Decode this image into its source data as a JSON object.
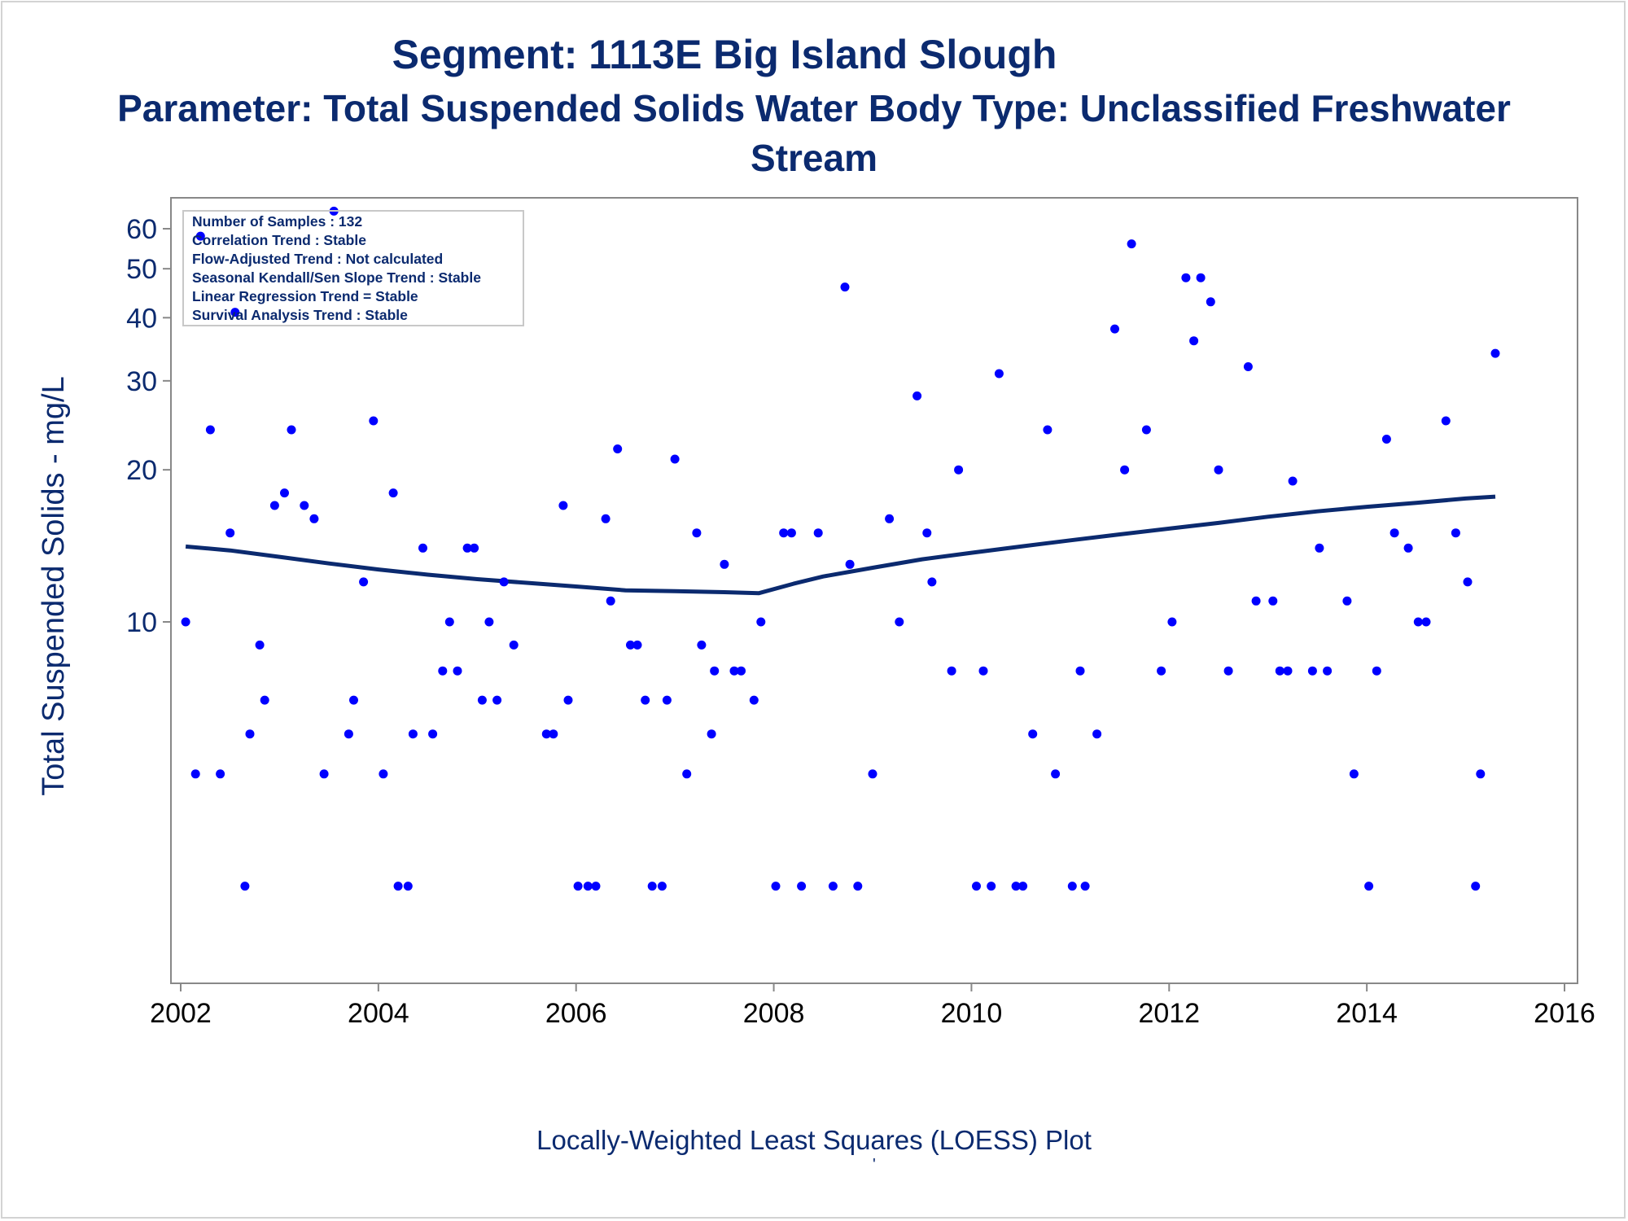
{
  "title": "Segment: 1113E  Big Island Slough",
  "subtitle_line1": "Parameter: Total Suspended Solids   Water Body Type: Unclassified Freshwater",
  "subtitle_line2": "Stream",
  "footnote": "Locally-Weighted Least Squares (LOESS) Plot",
  "footnote_mark": "'",
  "colors": {
    "text": "#0b2a6f",
    "points": "#0000ff",
    "loess": "#0b2a6f",
    "axis": "#888888"
  },
  "stats_box": [
    "Number of Samples : 132",
    "Correlation Trend : Stable",
    "Flow-Adjusted Trend : Not calculated",
    "Seasonal Kendall/Sen Slope Trend : Stable",
    "Linear Regression Trend = Stable",
    "Survival Analysis Trend : Stable"
  ],
  "chart_data": {
    "type": "scatter",
    "ylabel": "Total Suspended Solids - mg/L",
    "yscale": "log",
    "ylim": [
      2.8,
      70
    ],
    "yticks": [
      10,
      20,
      30,
      40,
      50,
      60
    ],
    "xlim": [
      2002,
      2016
    ],
    "xticks": [
      2002,
      2004,
      2006,
      2008,
      2010,
      2012,
      2014,
      2016
    ],
    "legend_position": "top-left",
    "series": [
      {
        "type": "scatter",
        "points": [
          [
            2002.05,
            10
          ],
          [
            2002.15,
            5
          ],
          [
            2002.2,
            58
          ],
          [
            2002.3,
            24
          ],
          [
            2002.4,
            5
          ],
          [
            2002.5,
            15
          ],
          [
            2002.55,
            41
          ],
          [
            2002.65,
            3
          ],
          [
            2002.7,
            6
          ],
          [
            2002.8,
            9
          ],
          [
            2002.85,
            7
          ],
          [
            2002.95,
            17
          ],
          [
            2003.05,
            18
          ],
          [
            2003.12,
            24
          ],
          [
            2003.25,
            17
          ],
          [
            2003.35,
            16
          ],
          [
            2003.45,
            5
          ],
          [
            2003.55,
            65
          ],
          [
            2003.7,
            6
          ],
          [
            2003.75,
            7
          ],
          [
            2003.85,
            12
          ],
          [
            2003.95,
            25
          ],
          [
            2004.05,
            5
          ],
          [
            2004.15,
            18
          ],
          [
            2004.2,
            3
          ],
          [
            2004.3,
            3
          ],
          [
            2004.35,
            6
          ],
          [
            2004.45,
            14
          ],
          [
            2004.55,
            6
          ],
          [
            2004.65,
            8
          ],
          [
            2004.72,
            10
          ],
          [
            2004.8,
            8
          ],
          [
            2004.9,
            14
          ],
          [
            2004.97,
            14
          ],
          [
            2005.05,
            7
          ],
          [
            2005.12,
            10
          ],
          [
            2005.2,
            7
          ],
          [
            2005.27,
            12
          ],
          [
            2005.37,
            9
          ],
          [
            2005.7,
            6
          ],
          [
            2005.77,
            6
          ],
          [
            2005.87,
            17
          ],
          [
            2005.92,
            7
          ],
          [
            2006.02,
            3
          ],
          [
            2006.12,
            3
          ],
          [
            2006.2,
            3
          ],
          [
            2006.3,
            16
          ],
          [
            2006.35,
            11
          ],
          [
            2006.42,
            22
          ],
          [
            2006.55,
            9
          ],
          [
            2006.62,
            9
          ],
          [
            2006.7,
            7
          ],
          [
            2006.77,
            3
          ],
          [
            2006.87,
            3
          ],
          [
            2006.92,
            7
          ],
          [
            2007.0,
            21
          ],
          [
            2007.12,
            5
          ],
          [
            2007.22,
            15
          ],
          [
            2007.27,
            9
          ],
          [
            2007.37,
            6
          ],
          [
            2007.4,
            8
          ],
          [
            2007.5,
            13
          ],
          [
            2007.6,
            8
          ],
          [
            2007.67,
            8
          ],
          [
            2007.8,
            7
          ],
          [
            2007.87,
            10
          ],
          [
            2008.02,
            3
          ],
          [
            2008.1,
            15
          ],
          [
            2008.18,
            15
          ],
          [
            2008.28,
            3
          ],
          [
            2008.45,
            15
          ],
          [
            2008.6,
            3
          ],
          [
            2008.72,
            46
          ],
          [
            2008.77,
            13
          ],
          [
            2008.85,
            3
          ],
          [
            2009.0,
            5
          ],
          [
            2009.17,
            16
          ],
          [
            2009.27,
            10
          ],
          [
            2009.45,
            28
          ],
          [
            2009.55,
            15
          ],
          [
            2009.6,
            12
          ],
          [
            2009.8,
            8
          ],
          [
            2009.87,
            20
          ],
          [
            2010.05,
            3
          ],
          [
            2010.12,
            8
          ],
          [
            2010.2,
            3
          ],
          [
            2010.28,
            31
          ],
          [
            2010.45,
            3
          ],
          [
            2010.52,
            3
          ],
          [
            2010.62,
            6
          ],
          [
            2010.77,
            24
          ],
          [
            2010.85,
            5
          ],
          [
            2011.02,
            3
          ],
          [
            2011.1,
            8
          ],
          [
            2011.15,
            3
          ],
          [
            2011.27,
            6
          ],
          [
            2011.45,
            38
          ],
          [
            2011.55,
            20
          ],
          [
            2011.62,
            56
          ],
          [
            2011.77,
            24
          ],
          [
            2011.92,
            8
          ],
          [
            2012.03,
            10
          ],
          [
            2012.17,
            48
          ],
          [
            2012.25,
            36
          ],
          [
            2012.32,
            48
          ],
          [
            2012.42,
            43
          ],
          [
            2012.5,
            20
          ],
          [
            2012.6,
            8
          ],
          [
            2012.8,
            32
          ],
          [
            2012.88,
            11
          ],
          [
            2013.05,
            11
          ],
          [
            2013.12,
            8
          ],
          [
            2013.2,
            8
          ],
          [
            2013.25,
            19
          ],
          [
            2013.45,
            8
          ],
          [
            2013.52,
            14
          ],
          [
            2013.6,
            8
          ],
          [
            2013.8,
            11
          ],
          [
            2013.87,
            5
          ],
          [
            2014.02,
            3
          ],
          [
            2014.1,
            8
          ],
          [
            2014.2,
            23
          ],
          [
            2014.28,
            15
          ],
          [
            2014.42,
            14
          ],
          [
            2014.52,
            10
          ],
          [
            2014.6,
            10
          ],
          [
            2014.8,
            25
          ],
          [
            2014.9,
            15
          ],
          [
            2015.02,
            12
          ],
          [
            2015.1,
            3
          ],
          [
            2015.15,
            5
          ],
          [
            2015.3,
            34
          ]
        ]
      },
      {
        "type": "line",
        "x": [
          2002.05,
          2002.5,
          2003.0,
          2003.5,
          2004.0,
          2004.5,
          2005.0,
          2005.5,
          2006.0,
          2006.5,
          2007.0,
          2007.5,
          2007.85,
          2008.2,
          2008.5,
          2009.0,
          2009.5,
          2010.0,
          2010.5,
          2011.0,
          2011.5,
          2012.0,
          2012.5,
          2013.0,
          2013.5,
          2014.0,
          2014.5,
          2015.0,
          2015.3
        ],
        "y": [
          14.1,
          13.85,
          13.45,
          13.05,
          12.7,
          12.4,
          12.15,
          11.95,
          11.75,
          11.55,
          11.5,
          11.45,
          11.4,
          11.9,
          12.3,
          12.8,
          13.3,
          13.7,
          14.1,
          14.5,
          14.9,
          15.3,
          15.7,
          16.15,
          16.55,
          16.9,
          17.2,
          17.55,
          17.7
        ]
      }
    ]
  }
}
